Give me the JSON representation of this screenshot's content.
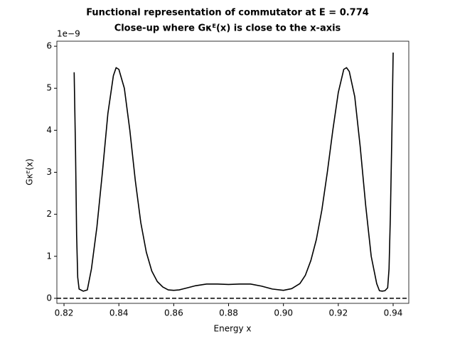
{
  "chart_data": {
    "type": "line",
    "title": "Functional representation of commutator at E = 0.774",
    "subtitle": "Close-up where Gκᴱ(x) is close to the x-axis",
    "x_label": "Energy x",
    "y_label": "Gκᴱ(x)",
    "y_offset_label": "1e−9",
    "x": [
      0.8237,
      0.8242,
      0.8246,
      0.825,
      0.8255,
      0.827,
      0.8285,
      0.83,
      0.832,
      0.834,
      0.836,
      0.838,
      0.839,
      0.84,
      0.842,
      0.844,
      0.846,
      0.848,
      0.85,
      0.852,
      0.854,
      0.856,
      0.858,
      0.86,
      0.862,
      0.865,
      0.868,
      0.872,
      0.876,
      0.88,
      0.884,
      0.888,
      0.892,
      0.896,
      0.9,
      0.903,
      0.906,
      0.908,
      0.91,
      0.912,
      0.914,
      0.916,
      0.918,
      0.92,
      0.922,
      0.923,
      0.924,
      0.926,
      0.928,
      0.93,
      0.932,
      0.934,
      0.935,
      0.936,
      0.937,
      0.938,
      0.9385,
      0.939,
      0.9395,
      0.94
    ],
    "series": [
      {
        "color": "#000000",
        "values": [
          5.38,
          3.5,
          1.5,
          0.5,
          0.22,
          0.17,
          0.2,
          0.7,
          1.7,
          3.0,
          4.4,
          5.3,
          5.49,
          5.45,
          5.0,
          4.0,
          2.8,
          1.8,
          1.1,
          0.65,
          0.4,
          0.27,
          0.2,
          0.19,
          0.2,
          0.25,
          0.3,
          0.34,
          0.34,
          0.33,
          0.34,
          0.34,
          0.29,
          0.22,
          0.19,
          0.23,
          0.35,
          0.55,
          0.9,
          1.4,
          2.1,
          3.0,
          4.0,
          4.9,
          5.45,
          5.49,
          5.4,
          4.8,
          3.6,
          2.2,
          1.0,
          0.35,
          0.18,
          0.17,
          0.18,
          0.25,
          0.7,
          2.0,
          3.8,
          5.85
        ]
      }
    ],
    "hline": {
      "value": 0,
      "color": "#000000",
      "style": "dashed"
    },
    "xlim": [
      0.8174,
      0.9457
    ],
    "ylim": [
      -0.12,
      6.12
    ],
    "xticks": [
      0.82,
      0.84,
      0.86,
      0.88,
      {
        "value": 0.9,
        "label": "0.90"
      },
      0.92,
      0.94
    ],
    "yticks": [
      0,
      1,
      2,
      3,
      4,
      5,
      6
    ],
    "grid": false
  }
}
